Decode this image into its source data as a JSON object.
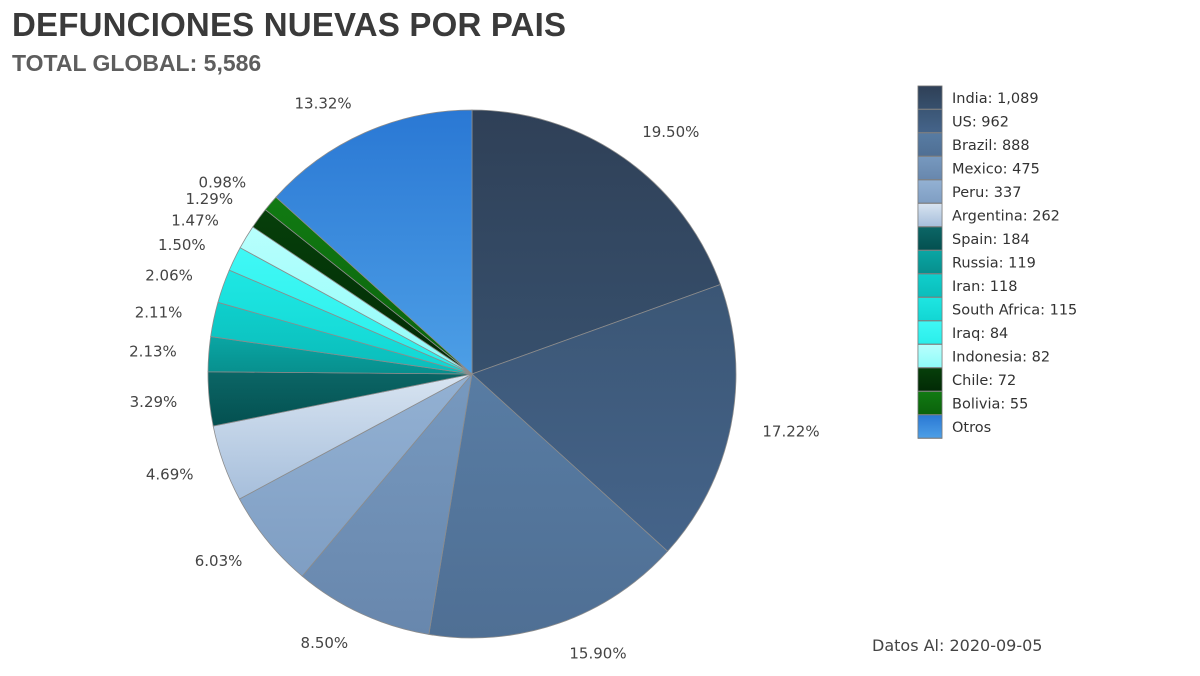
{
  "header": {
    "title": "DEFUNCIONES NUEVAS POR PAIS",
    "subtitle": "TOTAL GLOBAL: 5,586"
  },
  "footer": {
    "date_text": "Datos Al: 2020-09-05"
  },
  "chart_data": {
    "type": "pie",
    "title": "DEFUNCIONES NUEVAS POR PAIS",
    "subtitle": "TOTAL GLOBAL: 5,586",
    "legend_position": "right",
    "slices": [
      {
        "label": "India",
        "value": 1089,
        "value_text": "1,089",
        "percent_text": "19.50%",
        "color_top": "#2f4057",
        "color_bottom": "#37506d"
      },
      {
        "label": "US",
        "value": 962,
        "value_text": "962",
        "percent_text": "17.22%",
        "color_top": "#3b5675",
        "color_bottom": "#45648a"
      },
      {
        "label": "Brazil",
        "value": 888,
        "value_text": "888",
        "percent_text": "15.90%",
        "color_top": "#587ca3",
        "color_bottom": "#4f6f94"
      },
      {
        "label": "Mexico",
        "value": 475,
        "value_text": "475",
        "percent_text": "8.50%",
        "color_top": "#7799bf",
        "color_bottom": "#6887ad"
      },
      {
        "label": "Peru",
        "value": 337,
        "value_text": "337",
        "percent_text": "6.03%",
        "color_top": "#93b1d3",
        "color_bottom": "#7f9ec3"
      },
      {
        "label": "Argentina",
        "value": 262,
        "value_text": "262",
        "percent_text": "4.69%",
        "color_top": "#d8e4f1",
        "color_bottom": "#a6bedb"
      },
      {
        "label": "Spain",
        "value": 184,
        "value_text": "184",
        "percent_text": "3.29%",
        "color_top": "#0b6666",
        "color_bottom": "#045050"
      },
      {
        "label": "Russia",
        "value": 119,
        "value_text": "119",
        "percent_text": "2.13%",
        "color_top": "#0aa6a4",
        "color_bottom": "#078f8d"
      },
      {
        "label": "Iran",
        "value": 118,
        "value_text": "118",
        "percent_text": "2.11%",
        "color_top": "#0fcfcc",
        "color_bottom": "#0bbdbb"
      },
      {
        "label": "South Africa",
        "value": 115,
        "value_text": "115",
        "percent_text": "2.06%",
        "color_top": "#1ee6e2",
        "color_bottom": "#12d6d3"
      },
      {
        "label": "Iraq",
        "value": 84,
        "value_text": "84",
        "percent_text": "1.50%",
        "color_top": "#3ff8f5",
        "color_bottom": "#2aeeea"
      },
      {
        "label": "Indonesia",
        "value": 82,
        "value_text": "82",
        "percent_text": "1.47%",
        "color_top": "#b8fffd",
        "color_bottom": "#8ffcf9"
      },
      {
        "label": "Chile",
        "value": 72,
        "value_text": "72",
        "percent_text": "1.29%",
        "color_top": "#063f0a",
        "color_bottom": "#022a05"
      },
      {
        "label": "Bolivia",
        "value": 55,
        "value_text": "55",
        "percent_text": "0.98%",
        "color_top": "#117a12",
        "color_bottom": "#0b620c"
      },
      {
        "label": "Otros",
        "value": 744,
        "value_text": "",
        "percent_text": "13.32%",
        "color_top": "#2a78d4",
        "color_bottom": "#4d9fe6"
      }
    ]
  }
}
